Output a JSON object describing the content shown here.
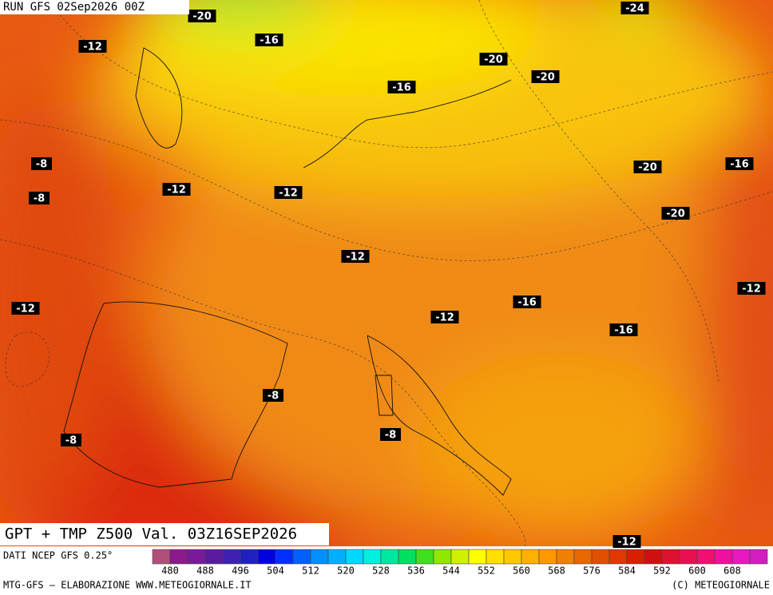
{
  "header": {
    "run": "RUN GFS 02Sep2026 00Z"
  },
  "map": {
    "labels": [
      "-20",
      "-24",
      "-12",
      "-16",
      "-20",
      "-20",
      "-16",
      "-8",
      "-8",
      "-12",
      "-12",
      "-20",
      "-16",
      "-20",
      "-12",
      "-12",
      "-16",
      "-12",
      "-12",
      "-16",
      "-8",
      "-8",
      "-8",
      "-12"
    ]
  },
  "title": "GPT + TMP Z500 Val. 03Z16SEP2026",
  "legend": {
    "source": "DATI NCEP GFS 0.25°",
    "ticks": [
      480,
      488,
      496,
      504,
      512,
      520,
      528,
      536,
      544,
      552,
      560,
      568,
      576,
      584,
      592,
      600,
      608
    ]
  },
  "footer": {
    "left": "MTG-GFS – ELABORAZIONE WWW.METEOGIORNALE.IT",
    "right": "(C) METEOGIORNALE"
  }
}
